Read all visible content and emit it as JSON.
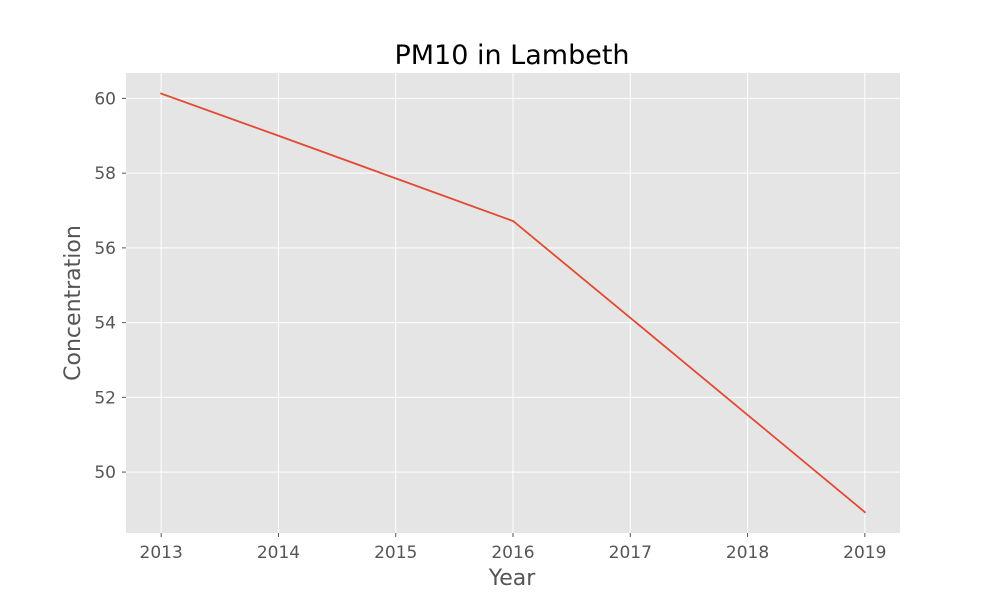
{
  "chart_data": {
    "type": "line",
    "title": "PM10 in Lambeth",
    "xlabel": "Year",
    "ylabel": "Concentration",
    "x": [
      2013,
      2014,
      2015,
      2016,
      2017,
      2018,
      2019
    ],
    "series": [
      {
        "values": [
          60.13,
          59.0,
          57.86,
          56.72,
          54.13,
          51.53,
          48.93
        ]
      }
    ],
    "xlim": [
      2012.7,
      2019.3
    ],
    "ylim": [
      48.37,
      60.68
    ],
    "xticks": [
      "2013",
      "2014",
      "2015",
      "2016",
      "2017",
      "2018",
      "2019"
    ],
    "yticks": [
      "50",
      "52",
      "54",
      "56",
      "58",
      "60"
    ],
    "grid": true,
    "legend": "none",
    "colors": {
      "line": "#E24A33",
      "plot_background": "#E5E5E5",
      "grid": "#FFFFFF",
      "page_background": "#FFFFFF"
    }
  }
}
